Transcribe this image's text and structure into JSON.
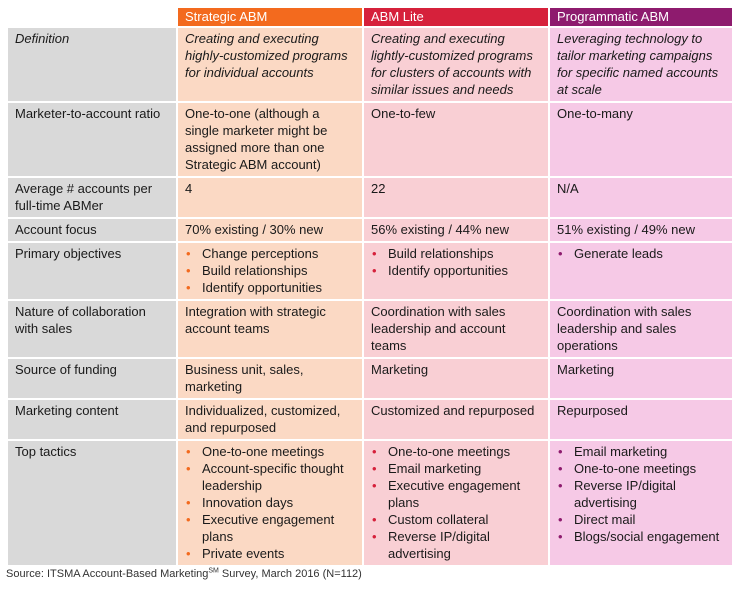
{
  "header": {
    "blank": "",
    "col1": "Strategic ABM",
    "col2": "ABM Lite",
    "col3": "Programmatic ABM"
  },
  "colors": {
    "strategic": "#f36a1e",
    "lite": "#d6213b",
    "programmatic": "#8e1b6e"
  },
  "rows": {
    "definition": {
      "label": "Definition",
      "c1": "Creating and executing highly-customized programs for individual accounts",
      "c2": "Creating and executing lightly-customized programs for clusters of accounts with similar issues and needs",
      "c3": "Leveraging technology to tailor marketing campaigns for specific named accounts at scale"
    },
    "ratio": {
      "label": "Marketer-to-account ratio",
      "c1": "One-to-one (although a single marketer might be assigned more than one Strategic ABM account)",
      "c2": "One-to-few",
      "c3": "One-to-many"
    },
    "accounts": {
      "label": "Average # accounts per full-time ABMer",
      "c1": "4",
      "c2": "22",
      "c3": "N/A"
    },
    "focus": {
      "label": "Account focus",
      "c1": "70% existing / 30% new",
      "c2": "56% existing / 44% new",
      "c3": "51% existing / 49% new"
    },
    "objectives": {
      "label": "Primary objectives",
      "c1": [
        "Change perceptions",
        "Build relationships",
        "Identify opportunities"
      ],
      "c2": [
        "Build relationships",
        "Identify opportunities"
      ],
      "c3": [
        "Generate leads"
      ]
    },
    "collaboration": {
      "label": "Nature of collaboration with sales",
      "c1": "Integration with strategic account teams",
      "c2": "Coordination with sales leadership and account teams",
      "c3": "Coordination with sales leadership and sales operations"
    },
    "funding": {
      "label": "Source of funding",
      "c1": "Business unit, sales, marketing",
      "c2": "Marketing",
      "c3": "Marketing"
    },
    "content": {
      "label": "Marketing content",
      "c1": "Individualized, customized, and repurposed",
      "c2": "Customized and repurposed",
      "c3": "Repurposed"
    },
    "tactics": {
      "label": "Top tactics",
      "c1": [
        "One-to-one meetings",
        "Account-specific thought leadership",
        "Innovation days",
        "Executive engagement plans",
        "Private events"
      ],
      "c2": [
        "One-to-one meetings",
        "Email marketing",
        "Executive engagement plans",
        "Custom collateral",
        "Reverse IP/digital advertising"
      ],
      "c3": [
        "Email marketing",
        "One-to-one meetings",
        "Reverse IP/digital advertising",
        "Direct mail",
        "Blogs/social engagement"
      ]
    }
  },
  "bullet": "•",
  "source": {
    "prefix": "Source: ITSMA Account-Based Marketing",
    "sup": "SM",
    "suffix": " Survey, March 2016 (N=112)"
  }
}
